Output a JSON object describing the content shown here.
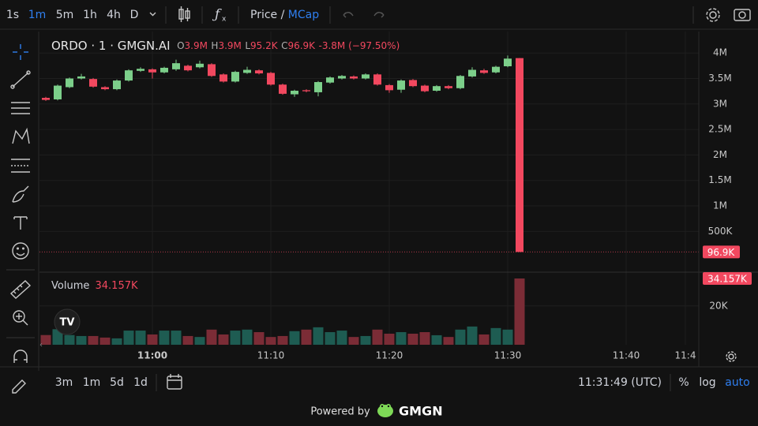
{
  "toolbar": {
    "intervals": [
      "1s",
      "1m",
      "5m",
      "1h",
      "4h",
      "D"
    ],
    "price": "Price",
    "separator": "/",
    "mcap": "MCap"
  },
  "legend": {
    "symbol": "ORDO · 1 · GMGN.AI",
    "o_label": "O",
    "o": "3.9M",
    "h_label": "H",
    "h": "3.9M",
    "l_label": "L",
    "l": "95.2K",
    "c_label": "C",
    "c": "96.9K",
    "change": "-3.8M (−97.50%)"
  },
  "chart_data": {
    "type": "candlestick",
    "categories": [
      null,
      null,
      null,
      null,
      null,
      null,
      null,
      null,
      null,
      "11:00",
      null,
      null,
      null,
      null,
      null,
      null,
      null,
      null,
      null,
      "11:10",
      null,
      null,
      null,
      null,
      null,
      null,
      null,
      null,
      null,
      "11:20",
      null,
      null,
      null,
      null,
      null,
      null,
      null,
      null,
      null,
      "11:30",
      null,
      null,
      null,
      null,
      null,
      null,
      null,
      null,
      null,
      "11:40",
      null,
      null,
      null,
      null,
      "11:4"
    ],
    "open": [
      3120000,
      3090000,
      3330000,
      3500000,
      3490000,
      3330000,
      3290000,
      3460000,
      3650000,
      3680000,
      3620000,
      3680000,
      3750000,
      3720000,
      3780000,
      3580000,
      3440000,
      3610000,
      3660000,
      3610000,
      3380000,
      3190000,
      3270000,
      3230000,
      3420000,
      3500000,
      3540000,
      3500000,
      3580000,
      3370000,
      3280000,
      3470000,
      3360000,
      3260000,
      3350000,
      3310000,
      3540000,
      3660000,
      3620000,
      3740000,
      3900000,
      null,
      null,
      null,
      null,
      null,
      null,
      null,
      null,
      null,
      null,
      null,
      null,
      null,
      null
    ],
    "high": [
      3140000,
      3380000,
      3520000,
      3590000,
      3510000,
      3350000,
      3480000,
      3680000,
      3720000,
      3700000,
      3730000,
      3870000,
      3770000,
      3850000,
      3800000,
      3600000,
      3650000,
      3730000,
      3680000,
      3630000,
      3400000,
      3280000,
      3290000,
      3450000,
      3540000,
      3570000,
      3560000,
      3600000,
      3600000,
      3390000,
      3480000,
      3490000,
      3380000,
      3370000,
      3370000,
      3570000,
      3720000,
      3690000,
      3750000,
      3950000,
      3900000,
      null,
      null,
      null,
      null,
      null,
      null,
      null,
      null,
      null,
      null,
      null,
      null,
      null,
      null
    ],
    "low": [
      3060000,
      3070000,
      3310000,
      3480000,
      3320000,
      3270000,
      3270000,
      3440000,
      3630000,
      3500000,
      3600000,
      3650000,
      3640000,
      3700000,
      3530000,
      3420000,
      3420000,
      3590000,
      3580000,
      3360000,
      3180000,
      3140000,
      3230000,
      3150000,
      3400000,
      3480000,
      3480000,
      3480000,
      3360000,
      3220000,
      3220000,
      3330000,
      3230000,
      3240000,
      3290000,
      3290000,
      3520000,
      3590000,
      3600000,
      3720000,
      95200,
      null,
      null,
      null,
      null,
      null,
      null,
      null,
      null,
      null,
      null,
      null,
      null,
      null,
      null
    ],
    "close": [
      3080000,
      3360000,
      3500000,
      3540000,
      3340000,
      3290000,
      3460000,
      3660000,
      3690000,
      3620000,
      3710000,
      3800000,
      3660000,
      3790000,
      3550000,
      3440000,
      3630000,
      3670000,
      3600000,
      3380000,
      3200000,
      3260000,
      3250000,
      3430000,
      3520000,
      3550000,
      3500000,
      3580000,
      3380000,
      3270000,
      3460000,
      3350000,
      3250000,
      3350000,
      3310000,
      3550000,
      3670000,
      3610000,
      3730000,
      3890000,
      96900,
      null,
      null,
      null,
      null,
      null,
      null,
      null,
      null,
      null,
      null,
      null,
      null,
      null,
      null
    ],
    "up_color": "#7ccf8a",
    "down_color": "#f2485f",
    "ylim": [
      -300000,
      4390000
    ],
    "yticks": [
      {
        "value": 500000,
        "label": "500K"
      },
      {
        "value": 1000000,
        "label": "1M"
      },
      {
        "value": 1500000,
        "label": "1.5M"
      },
      {
        "value": 2000000,
        "label": "2M"
      },
      {
        "value": 2500000,
        "label": "2.5M"
      },
      {
        "value": 3000000,
        "label": "3M"
      },
      {
        "value": 3500000,
        "label": "3.5M"
      },
      {
        "value": 4000000,
        "label": "4M"
      }
    ],
    "last_price_label": "96.9K",
    "grid": true,
    "volume": {
      "title": "Volume",
      "value_label": "34.157K",
      "values": [
        5000,
        8000,
        5000,
        4500,
        4500,
        3700,
        3300,
        7300,
        7300,
        5300,
        7300,
        7300,
        4500,
        4000,
        7800,
        5300,
        7300,
        7800,
        6500,
        4000,
        4500,
        7000,
        7800,
        9000,
        6500,
        7300,
        4000,
        4500,
        7800,
        5700,
        6500,
        5700,
        6500,
        4900,
        4000,
        7800,
        9400,
        5300,
        8600,
        7800,
        34157,
        null,
        null,
        null,
        null,
        null,
        null,
        null,
        null,
        null,
        null,
        null,
        null,
        null,
        null
      ],
      "up_color": "#1e5c52",
      "down_color": "#7b2c36",
      "ylim": [
        0,
        37000
      ],
      "yticks": [
        {
          "value": 20000,
          "label": "20K"
        }
      ]
    }
  },
  "bottom_bar": {
    "ranges": [
      "3m",
      "1m",
      "5d",
      "1d"
    ],
    "time": "11:31:49 (UTC)",
    "percent": "%",
    "log": "log",
    "auto": "auto"
  },
  "footer": {
    "powered": "Powered by",
    "brand": "GMGN"
  }
}
